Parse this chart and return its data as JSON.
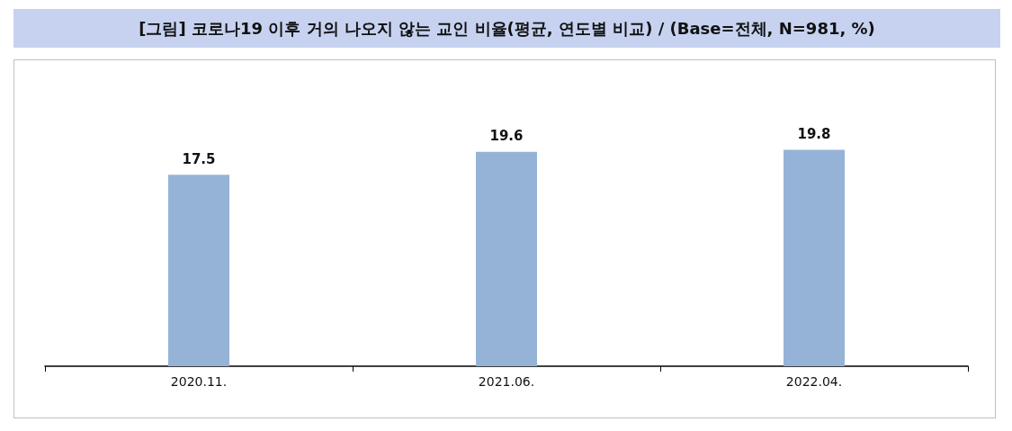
{
  "chart_data": {
    "type": "bar",
    "title": "[그림] 코로나19 이후 거의 나오지 않는 교인 비율(평균, 연도별 비교) / (Base=전체, N=981, %)",
    "categories": [
      "2020.11.",
      "2021.06.",
      "2022.04."
    ],
    "values": [
      17.5,
      19.6,
      19.8
    ],
    "color": "#95b3d7",
    "data_labels": true
  }
}
